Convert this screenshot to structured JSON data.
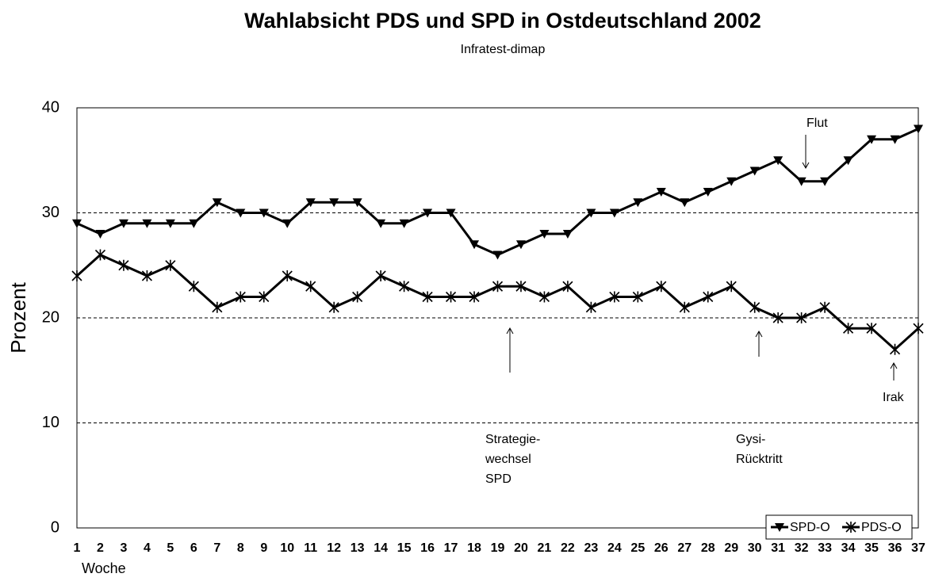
{
  "chart_data": {
    "type": "line",
    "title": "Wahlabsicht PDS und SPD in Ostdeutschland 2002",
    "subtitle": "Infratest-dimap",
    "xlabel": "Woche",
    "ylabel": "Prozent",
    "categories": [
      1,
      2,
      3,
      4,
      5,
      6,
      7,
      8,
      9,
      10,
      11,
      12,
      13,
      14,
      15,
      16,
      17,
      18,
      19,
      20,
      21,
      22,
      23,
      24,
      25,
      26,
      27,
      28,
      29,
      30,
      31,
      32,
      33,
      34,
      35,
      36,
      37
    ],
    "series": [
      {
        "name": "SPD-O",
        "color": "#000000",
        "marker": "triangle-down",
        "values": [
          29,
          28,
          29,
          29,
          29,
          29,
          31,
          30,
          30,
          29,
          31,
          31,
          31,
          29,
          29,
          30,
          30,
          27,
          26,
          27,
          28,
          28,
          30,
          30,
          31,
          32,
          31,
          32,
          33,
          34,
          35,
          33,
          33,
          35,
          37,
          37,
          38
        ]
      },
      {
        "name": "PDS-O",
        "color": "#000000",
        "marker": "star",
        "values": [
          24,
          26,
          25,
          24,
          25,
          23,
          21,
          22,
          22,
          24,
          23,
          21,
          22,
          24,
          23,
          22,
          22,
          22,
          23,
          23,
          22,
          23,
          21,
          22,
          22,
          23,
          21,
          22,
          23,
          21,
          20,
          20,
          21,
          19,
          19,
          17,
          19
        ]
      }
    ],
    "ylim": [
      0,
      40
    ],
    "yticks": [
      0,
      10,
      20,
      30,
      40
    ],
    "grid": true,
    "legend": "lower right",
    "annotations": [
      {
        "text": [
          "Flut"
        ]
      },
      {
        "text": [
          "Strategie-",
          "wechsel",
          "SPD"
        ]
      },
      {
        "text": [
          "Gysi-",
          "Rücktritt"
        ]
      },
      {
        "text": [
          "Irak"
        ]
      }
    ]
  }
}
